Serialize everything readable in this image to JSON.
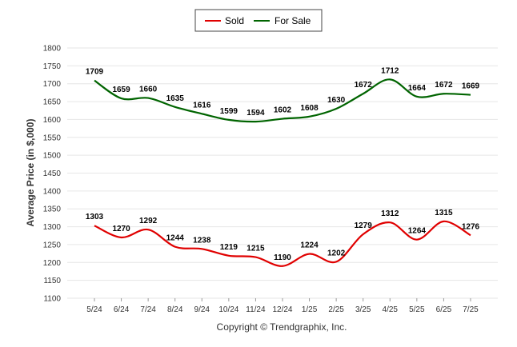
{
  "chart_data": {
    "type": "line",
    "title": "",
    "xlabel": "",
    "ylabel": "Average Price (in $,000)",
    "categories": [
      "5/24",
      "6/24",
      "7/24",
      "8/24",
      "9/24",
      "10/24",
      "11/24",
      "12/24",
      "1/25",
      "2/25",
      "3/25",
      "4/25",
      "5/25",
      "6/25",
      "7/25"
    ],
    "ylim": [
      1100,
      1800
    ],
    "yticks": [
      1100,
      1150,
      1200,
      1250,
      1300,
      1350,
      1400,
      1450,
      1500,
      1550,
      1600,
      1650,
      1700,
      1750,
      1800
    ],
    "grid": true,
    "legend_position": "top-center",
    "series": [
      {
        "name": "Sold",
        "color": "#e00000",
        "values": [
          1303,
          1270,
          1292,
          1244,
          1238,
          1219,
          1215,
          1190,
          1224,
          1202,
          1279,
          1312,
          1264,
          1315,
          1276
        ]
      },
      {
        "name": "For Sale",
        "color": "#006400",
        "values": [
          1709,
          1659,
          1660,
          1635,
          1616,
          1599,
          1594,
          1602,
          1608,
          1630,
          1672,
          1712,
          1664,
          1672,
          1669
        ]
      }
    ],
    "footer": "Copyright © Trendgraphix, Inc."
  }
}
